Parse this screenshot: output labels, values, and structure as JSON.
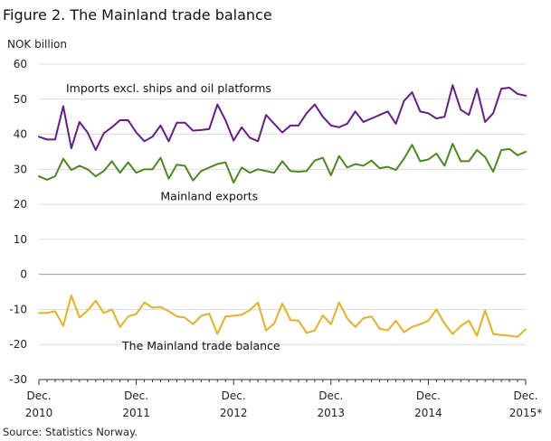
{
  "chart_data": {
    "type": "line",
    "title": "Figure 2. The Mainland trade balance",
    "ylabel": "NOK billion",
    "source": "Source: Statistics Norway.",
    "ylim": [
      -30,
      60
    ],
    "yticks": [
      -30,
      -20,
      -10,
      0,
      10,
      20,
      30,
      40,
      50,
      60
    ],
    "grid": true,
    "x_count": 61,
    "x_ticks": [
      {
        "index": 0,
        "line1": "Dec.",
        "line2": "2010"
      },
      {
        "index": 12,
        "line1": "Dec.",
        "line2": "2011"
      },
      {
        "index": 24,
        "line1": "Dec.",
        "line2": "2012"
      },
      {
        "index": 36,
        "line1": "Dec.",
        "line2": "2013"
      },
      {
        "index": 48,
        "line1": "Dec.",
        "line2": "2014"
      },
      {
        "index": 60,
        "line1": "Dec.",
        "line2": "2015*"
      }
    ],
    "series": [
      {
        "name": "Imports excl. ships and oil platforms",
        "color": "#6a1b8a",
        "values": [
          39.3,
          38.5,
          38.5,
          48.0,
          36.0,
          43.5,
          40.5,
          35.5,
          40.3,
          42.0,
          44.0,
          44.0,
          40.5,
          38.0,
          39.3,
          42.5,
          38.0,
          43.3,
          43.3,
          41.0,
          41.2,
          41.5,
          48.5,
          44.0,
          38.2,
          42.0,
          39.0,
          38.0,
          45.5,
          43.0,
          40.5,
          42.5,
          42.5,
          46.0,
          48.5,
          45.0,
          42.5,
          42.0,
          43.0,
          46.5,
          43.5,
          44.5,
          45.5,
          46.5,
          43.0,
          49.5,
          52.0,
          46.5,
          46.0,
          44.5,
          45.0,
          54.0,
          47.0,
          45.5,
          53.0,
          43.5,
          46.0,
          53.0,
          53.3,
          51.5,
          51.0
        ]
      },
      {
        "name": "Mainland exports",
        "color": "#4a8a1c",
        "values": [
          28.0,
          27.0,
          28.0,
          33.0,
          29.8,
          31.0,
          30.0,
          28.0,
          29.5,
          32.3,
          29.0,
          32.0,
          29.0,
          30.0,
          30.0,
          33.3,
          27.3,
          31.3,
          31.0,
          26.8,
          29.5,
          30.5,
          31.5,
          32.0,
          26.2,
          30.5,
          29.0,
          30.0,
          29.5,
          29.0,
          32.3,
          29.5,
          29.3,
          29.5,
          32.5,
          33.3,
          28.3,
          33.8,
          30.5,
          31.5,
          31.0,
          32.5,
          30.3,
          30.7,
          29.8,
          33.0,
          37.0,
          32.3,
          32.8,
          34.5,
          31.0,
          37.3,
          32.3,
          32.3,
          35.5,
          33.5,
          29.3,
          35.5,
          35.8,
          34.0,
          35.0
        ]
      },
      {
        "name": "The Mainland trade balance",
        "color": "#e8b020",
        "values": [
          -11.0,
          -11.0,
          -10.5,
          -14.7,
          -6.0,
          -12.3,
          -10.3,
          -7.5,
          -11.0,
          -10.0,
          -15.0,
          -12.0,
          -11.3,
          -8.0,
          -9.5,
          -9.3,
          -10.5,
          -12.0,
          -12.3,
          -14.2,
          -11.8,
          -11.2,
          -17.0,
          -12.0,
          -11.8,
          -11.5,
          -10.2,
          -8.0,
          -16.0,
          -14.0,
          -8.3,
          -13.0,
          -13.2,
          -16.7,
          -16.0,
          -11.7,
          -14.2,
          -8.0,
          -12.5,
          -15.0,
          -12.5,
          -12.0,
          -15.5,
          -16.0,
          -13.2,
          -16.5,
          -15.0,
          -14.2,
          -13.2,
          -10.0,
          -14.0,
          -17.0,
          -14.7,
          -13.2,
          -17.5,
          -10.3,
          -17.0,
          -17.3,
          -17.5,
          -17.8,
          -15.7
        ]
      }
    ],
    "series_labels": [
      {
        "text": "Imports excl. ships and oil platforms",
        "anchor_index": 16,
        "value": 52.0
      },
      {
        "text": "Mainland exports",
        "anchor_index": 21,
        "value": 21.2
      },
      {
        "text": "The Mainland trade balance",
        "anchor_index": 20,
        "value": -21.5
      }
    ]
  }
}
